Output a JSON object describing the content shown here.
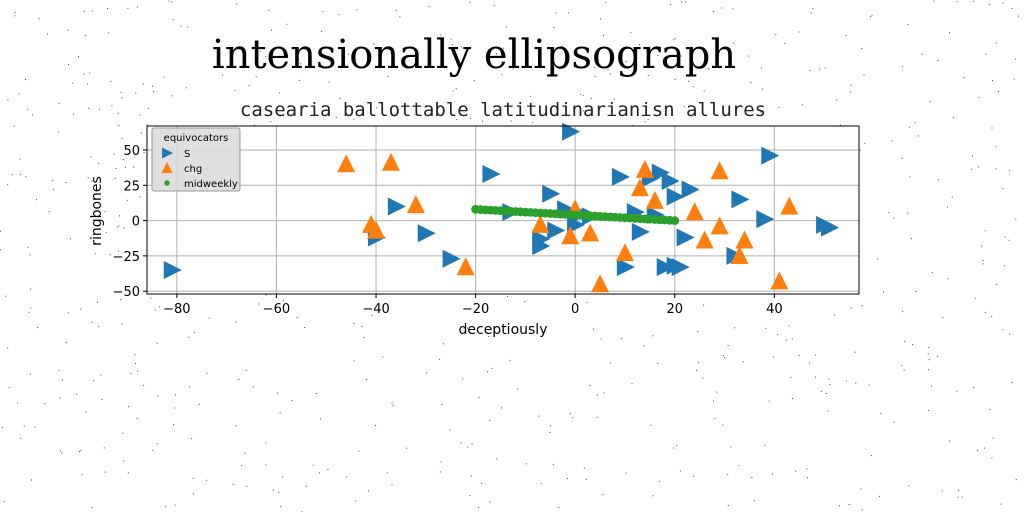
{
  "chart_data": {
    "type": "scatter",
    "suptitle": "intensionally ellipsograph",
    "title": "casearia ballottable latitudinarianisn allures",
    "xlabel": "deceptiously",
    "ylabel": "ringbones",
    "xlim": [
      -86,
      57
    ],
    "ylim": [
      -52,
      67
    ],
    "xticks": [
      -80,
      -60,
      -40,
      -20,
      0,
      20,
      40
    ],
    "yticks": [
      -50,
      -25,
      0,
      25,
      50
    ],
    "xtick_labels": [
      "−80",
      "−60",
      "−40",
      "−20",
      "0",
      "20",
      "40"
    ],
    "ytick_labels": [
      "−50",
      "−25",
      "0",
      "25",
      "50"
    ],
    "grid": true,
    "legend": {
      "title": "equivocators",
      "position": "top-left"
    },
    "series": [
      {
        "name": "S",
        "marker": "triangle-right",
        "color": "#1f77b4",
        "x": [
          -1,
          -81,
          -17,
          -36,
          -30,
          -40,
          -25,
          -5,
          -7,
          -7,
          -4,
          9,
          1,
          12,
          17,
          19,
          15,
          20,
          23,
          16,
          22,
          20,
          32,
          33,
          38,
          39,
          50,
          51,
          10,
          18,
          21,
          13,
          -13,
          3,
          0,
          -2
        ],
        "y": [
          63,
          -35,
          33,
          10,
          -9,
          -12,
          -27,
          19,
          -13,
          -18,
          -7,
          31,
          5,
          6,
          34,
          28,
          30,
          17,
          22,
          4,
          -12,
          -32,
          -25,
          15,
          1,
          46,
          -3,
          -5,
          -33,
          -33,
          -33,
          -8,
          6,
          3,
          -3,
          8
        ]
      },
      {
        "name": "chg",
        "marker": "triangle-up",
        "color": "#ff7f0e",
        "x": [
          -46,
          -37,
          -41,
          -40,
          -32,
          -22,
          -7,
          -1,
          0,
          3,
          5,
          10,
          13,
          14,
          16,
          24,
          26,
          29,
          29,
          33,
          34,
          41,
          43
        ],
        "y": [
          40,
          41,
          -3,
          -7,
          11,
          -33,
          -3,
          -11,
          8,
          -9,
          -45,
          -23,
          23,
          36,
          14,
          6,
          -14,
          35,
          -4,
          -25,
          -14,
          -43,
          10
        ]
      },
      {
        "name": "midweekly",
        "marker": "circle",
        "color": "#2ca02c",
        "x": [
          -20,
          -19,
          -18,
          -17,
          -16,
          -15,
          -14,
          -13,
          -12,
          -11,
          -10,
          -9,
          -8,
          -7,
          -6,
          -5,
          -4,
          -3,
          -2,
          -1,
          0,
          1,
          2,
          3,
          4,
          5,
          6,
          7,
          8,
          9,
          10,
          11,
          12,
          13,
          14,
          15,
          16,
          17,
          18,
          19,
          20
        ],
        "y": [
          8,
          7.8,
          7.6,
          7.4,
          7.2,
          7,
          6.8,
          6.6,
          6.4,
          6.2,
          6,
          5.8,
          5.6,
          5.4,
          5.2,
          5,
          4.8,
          4.6,
          4.4,
          4.2,
          4,
          3.8,
          3.6,
          3.4,
          3.2,
          3,
          2.8,
          2.6,
          2.4,
          2.2,
          2,
          1.8,
          1.6,
          1.4,
          1.2,
          1,
          0.8,
          0.6,
          0.4,
          0.2,
          0
        ]
      }
    ]
  }
}
